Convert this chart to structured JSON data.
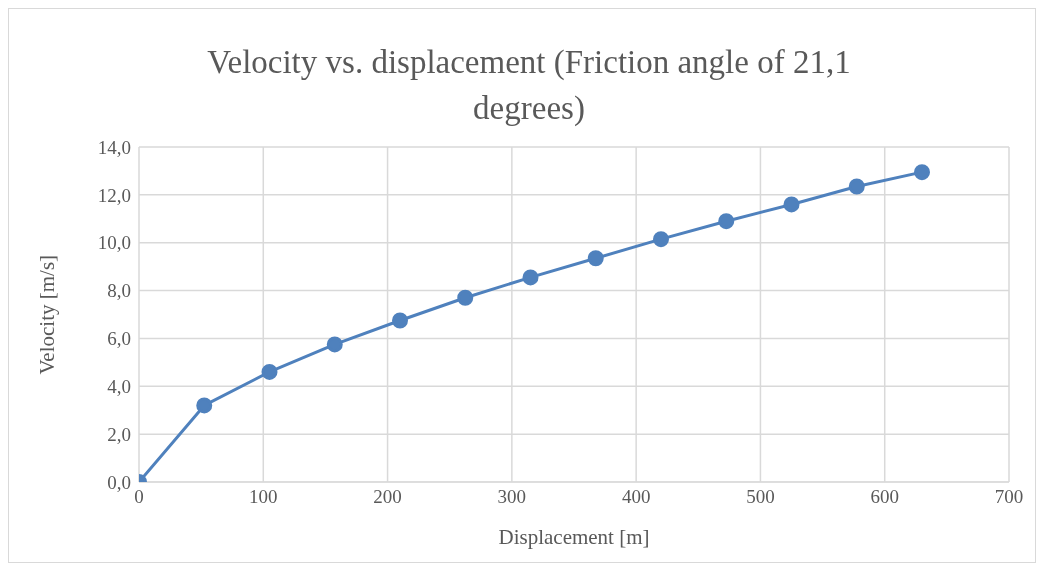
{
  "chart_data": {
    "type": "line",
    "title": "Velocity vs. displacement (Friction angle of 21,1 degrees)",
    "xlabel": "Displacement [m]",
    "ylabel": "Velocity [m/s]",
    "x": [
      0,
      52.5,
      105,
      157.5,
      210,
      262.5,
      315,
      367.5,
      420,
      472.5,
      525,
      577.5,
      630
    ],
    "series": [
      {
        "color": "#4f81bd",
        "values": [
          0,
          3.2,
          4.6,
          5.75,
          6.75,
          7.7,
          8.55,
          9.35,
          10.15,
          10.9,
          11.6,
          12.35,
          12.95
        ]
      }
    ],
    "xlim": [
      0,
      700
    ],
    "xticks": [
      0,
      100,
      200,
      300,
      400,
      500,
      600,
      700
    ],
    "ylim": [
      0,
      14
    ],
    "yticks": [
      {
        "value": 0,
        "label": "0,0"
      },
      {
        "value": 2,
        "label": "2,0"
      },
      {
        "value": 4,
        "label": "4,0"
      },
      {
        "value": 6,
        "label": "6,0"
      },
      {
        "value": 8,
        "label": "8,0"
      },
      {
        "value": 10,
        "label": "10,0"
      },
      {
        "value": 12,
        "label": "12,0"
      },
      {
        "value": 14,
        "label": "14,0"
      }
    ],
    "grid": true,
    "marker": "circle",
    "line_style": "solid",
    "legend": false
  }
}
